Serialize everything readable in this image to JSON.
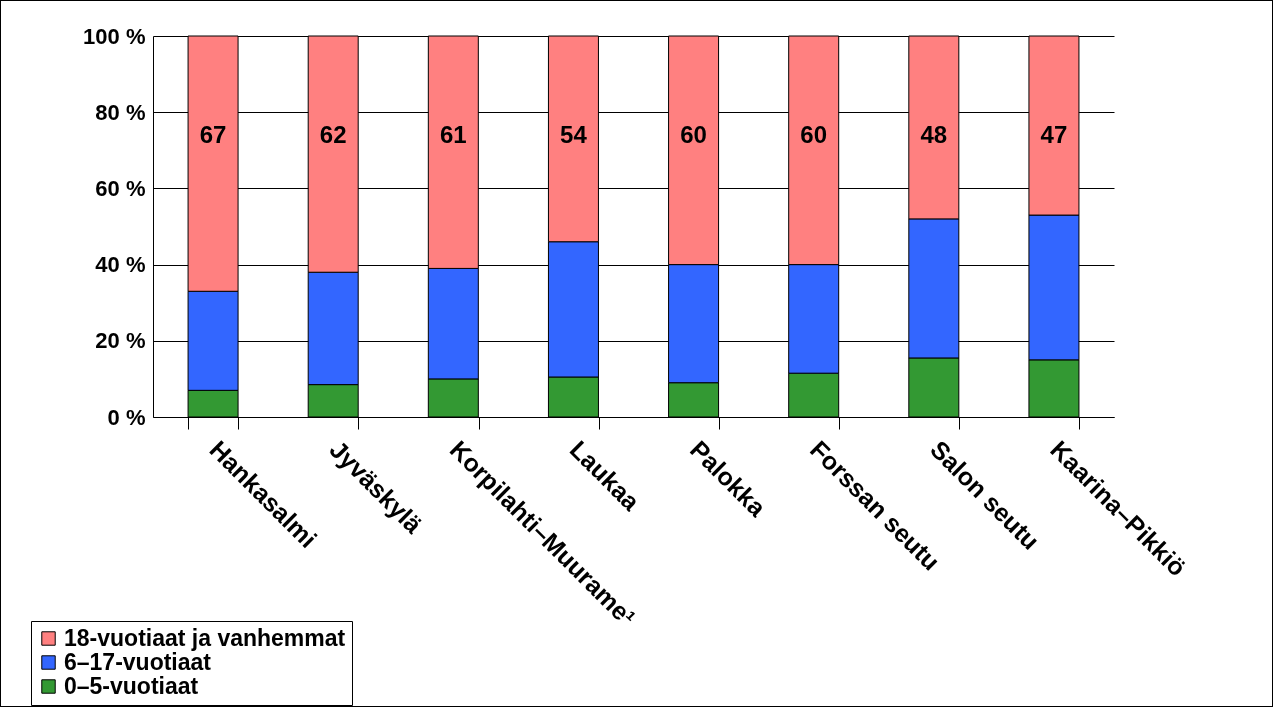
{
  "chart_data": {
    "type": "bar",
    "stacked": true,
    "categories": [
      "Hankasalmi",
      "Jyväskylä",
      "Korpilahti–Muurame¹",
      "Laukaa",
      "Palokka",
      "Forssan seutu",
      "Salon seutu",
      "Kaarina–Pikkiö"
    ],
    "series": [
      {
        "name": "0–5-vuotiaat",
        "color": "#339933",
        "values": [
          7,
          8.5,
          10,
          10.5,
          9,
          11.5,
          15.5,
          15
        ]
      },
      {
        "name": "6–17-vuotiaat",
        "color": "#3366ff",
        "values": [
          26,
          29.5,
          29,
          35.5,
          31,
          28.5,
          36.5,
          38
        ]
      },
      {
        "name": "18-vuotiaat ja vanhemmat",
        "color": "#ff8080",
        "values": [
          67,
          62,
          61,
          54,
          60,
          60,
          48,
          47
        ],
        "value_labels": [
          "67",
          "62",
          "61",
          "54",
          "60",
          "60",
          "48",
          "47"
        ]
      }
    ],
    "ylim": [
      0,
      100
    ],
    "yticks": [
      {
        "value": 0,
        "label": "0 %"
      },
      {
        "value": 20,
        "label": "20 %"
      },
      {
        "value": 40,
        "label": "40 %"
      },
      {
        "value": 60,
        "label": "60 %"
      },
      {
        "value": 80,
        "label": "80 %"
      },
      {
        "value": 100,
        "label": "100 %"
      }
    ],
    "grid": "y",
    "legend": "bottom left"
  }
}
